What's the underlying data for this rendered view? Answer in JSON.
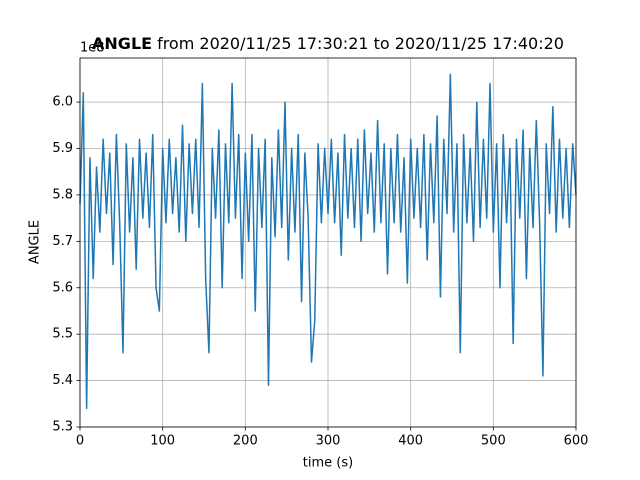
{
  "chart_data": {
    "type": "line",
    "title": {
      "variable": "ANGLE",
      "range": "from 2020/11/25 17:30:21 to 2020/11/25 17:40:20"
    },
    "y_offset_label": "1e8",
    "x_label": "time (s)",
    "y_label": "ANGLE",
    "xlim": [
      0,
      600
    ],
    "xticks": [
      0,
      100,
      200,
      300,
      400,
      500,
      600
    ],
    "ylim": [
      5.3,
      6.095
    ],
    "yticks": [
      5.3,
      5.4,
      5.5,
      5.6,
      5.7,
      5.8,
      5.9,
      {
        "value": 6,
        "label": "6.0"
      }
    ],
    "grid": true,
    "series": [
      {
        "name": "ANGLE",
        "color": "#1f77b4",
        "x": [
          0,
          4,
          8,
          12,
          16,
          20,
          24,
          28,
          32,
          36,
          40,
          44,
          48,
          52,
          56,
          60,
          64,
          68,
          72,
          76,
          80,
          84,
          88,
          92,
          96,
          100,
          104,
          108,
          112,
          116,
          120,
          124,
          128,
          132,
          136,
          140,
          144,
          148,
          152,
          156,
          160,
          164,
          168,
          172,
          176,
          180,
          184,
          188,
          192,
          196,
          200,
          204,
          208,
          212,
          216,
          220,
          224,
          228,
          232,
          236,
          240,
          244,
          248,
          252,
          256,
          260,
          264,
          268,
          272,
          276,
          280,
          284,
          288,
          292,
          296,
          300,
          304,
          308,
          312,
          316,
          320,
          324,
          328,
          332,
          336,
          340,
          344,
          348,
          352,
          356,
          360,
          364,
          368,
          372,
          376,
          380,
          384,
          388,
          392,
          396,
          400,
          404,
          408,
          412,
          416,
          420,
          424,
          428,
          432,
          436,
          440,
          444,
          448,
          452,
          456,
          460,
          464,
          468,
          472,
          476,
          480,
          484,
          488,
          492,
          496,
          500,
          504,
          508,
          512,
          516,
          520,
          524,
          528,
          532,
          536,
          540,
          544,
          548,
          552,
          556,
          560,
          564,
          568,
          572,
          576,
          580,
          584,
          588,
          592,
          596,
          600
        ],
        "values": [
          5.78,
          6.02,
          5.34,
          5.88,
          5.62,
          5.86,
          5.72,
          5.92,
          5.76,
          5.89,
          5.65,
          5.93,
          5.74,
          5.46,
          5.91,
          5.72,
          5.88,
          5.64,
          5.92,
          5.75,
          5.89,
          5.73,
          5.93,
          5.6,
          5.55,
          5.9,
          5.74,
          5.92,
          5.76,
          5.88,
          5.72,
          5.95,
          5.7,
          5.91,
          5.76,
          5.92,
          5.73,
          6.04,
          5.62,
          5.46,
          5.9,
          5.75,
          5.94,
          5.6,
          5.91,
          5.74,
          6.04,
          5.75,
          5.93,
          5.62,
          5.89,
          5.7,
          5.93,
          5.55,
          5.9,
          5.73,
          5.92,
          5.39,
          5.88,
          5.71,
          5.94,
          5.73,
          6.0,
          5.66,
          5.9,
          5.72,
          5.93,
          5.57,
          5.89,
          5.75,
          5.44,
          5.53,
          5.91,
          5.74,
          5.9,
          5.76,
          5.92,
          5.74,
          5.89,
          5.67,
          5.93,
          5.75,
          5.9,
          5.73,
          5.92,
          5.7,
          5.94,
          5.76,
          5.89,
          5.72,
          5.96,
          5.74,
          5.91,
          5.63,
          5.9,
          5.74,
          5.93,
          5.72,
          5.88,
          5.61,
          5.92,
          5.75,
          5.9,
          5.73,
          5.93,
          5.66,
          5.91,
          5.74,
          5.97,
          5.58,
          5.92,
          5.76,
          6.06,
          5.72,
          5.91,
          5.46,
          5.93,
          5.74,
          5.9,
          5.7,
          6.0,
          5.73,
          5.92,
          5.75,
          6.04,
          5.72,
          5.91,
          5.6,
          5.93,
          5.74,
          5.9,
          5.48,
          5.92,
          5.75,
          5.94,
          5.62,
          5.9,
          5.73,
          5.96,
          5.74,
          5.41,
          5.91,
          5.76,
          5.99,
          5.72,
          5.92,
          5.75,
          5.9,
          5.73,
          5.91,
          5.8
        ]
      }
    ]
  }
}
